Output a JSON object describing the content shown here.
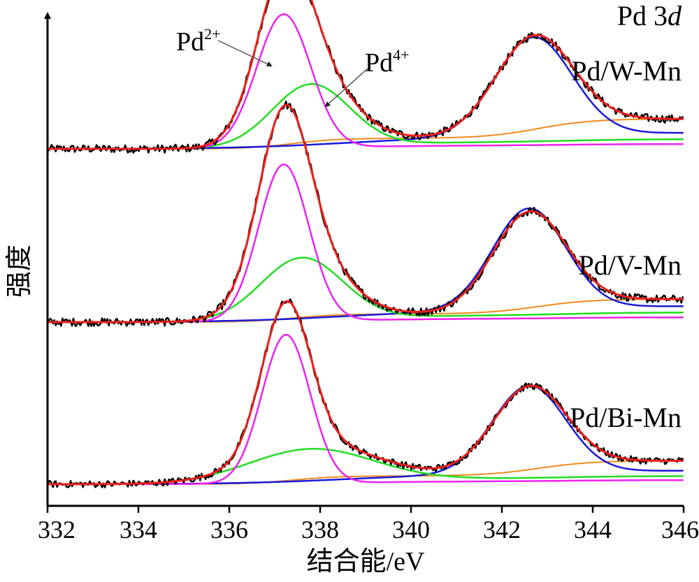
{
  "chart_data": {
    "type": "line",
    "title": "Pd 3",
    "title_italic": "d",
    "xlabel": "结合能/eV",
    "ylabel": "强度",
    "xlim": [
      332,
      346
    ],
    "xticks": [
      332,
      334,
      336,
      338,
      340,
      342,
      344,
      346
    ],
    "yticks_shown": false,
    "annotations": [
      {
        "base": "Pd",
        "sup": "2+",
        "points_to": "Pd2+ fit component"
      },
      {
        "base": "Pd",
        "sup": "4+",
        "points_to": "Pd4+ fit component"
      }
    ],
    "colors": {
      "raw": "#000000",
      "fit": "#e8201c",
      "pd2": "#ee22ee",
      "pd4": "#22dd22",
      "pd32": "#1a1adb",
      "bg": "#f08a1c"
    },
    "panels": [
      {
        "name": "Pd/W-Mn",
        "peaks": [
          {
            "component": "Pd2+ 3d5/2",
            "center": 337.2,
            "fwhm": 1.4,
            "height": 0.58
          },
          {
            "component": "Pd4+ 3d5/2",
            "center": 337.8,
            "fwhm": 2.0,
            "height": 0.27
          },
          {
            "component": "Pd 3d3/2",
            "center": 342.7,
            "fwhm": 2.0,
            "height": 0.43
          }
        ],
        "baseline_low": 0.0,
        "baseline_high": 0.13
      },
      {
        "name": "Pd/V-Mn",
        "peaks": [
          {
            "component": "Pd2+ 3d5/2",
            "center": 337.2,
            "fwhm": 1.3,
            "height": 0.68
          },
          {
            "component": "Pd4+ 3d5/2",
            "center": 337.6,
            "fwhm": 2.1,
            "height": 0.27
          },
          {
            "component": "Pd 3d3/2",
            "center": 342.6,
            "fwhm": 1.9,
            "height": 0.44
          }
        ],
        "baseline_low": 0.0,
        "baseline_high": 0.1
      },
      {
        "name": "Pd/Bi-Mn",
        "peaks": [
          {
            "component": "Pd2+ 3d5/2",
            "center": 337.25,
            "fwhm": 1.25,
            "height": 0.76
          },
          {
            "component": "Pd4+ 3d5/2",
            "center": 337.8,
            "fwhm": 3.2,
            "height": 0.17
          },
          {
            "component": "Pd 3d3/2",
            "center": 342.6,
            "fwhm": 1.9,
            "height": 0.45
          }
        ],
        "baseline_low": 0.0,
        "baseline_high": 0.12
      }
    ]
  }
}
